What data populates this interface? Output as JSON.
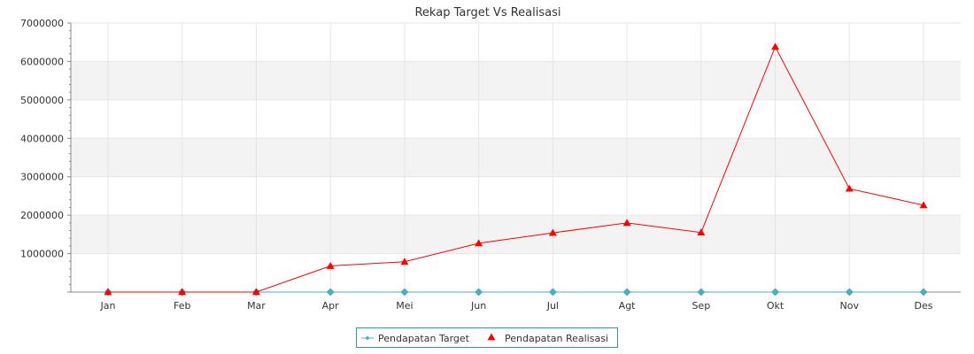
{
  "chart_data": {
    "type": "line",
    "title": "Rekap Target Vs Realisasi",
    "categories": [
      "Jan",
      "Feb",
      "Mar",
      "Apr",
      "Mei",
      "Jun",
      "Jul",
      "Agt",
      "Sep",
      "Okt",
      "Nov",
      "Des"
    ],
    "ylim": [
      0,
      7000000
    ],
    "yticks": [
      1000000,
      2000000,
      3000000,
      4000000,
      5000000,
      6000000,
      7000000
    ],
    "grid": true,
    "legend_position": "bottom-center",
    "series": [
      {
        "name": "Pendapatan Target",
        "color": "#4bacc6",
        "marker": "diamond",
        "values": [
          0,
          0,
          0,
          0,
          0,
          0,
          0,
          0,
          0,
          0,
          0,
          0
        ]
      },
      {
        "name": "Pendapatan Realisasi",
        "color": "#ff0000",
        "marker": "triangle",
        "values": [
          0,
          0,
          0,
          680000,
          790000,
          1270000,
          1540000,
          1800000,
          1550000,
          6380000,
          2690000,
          2260000
        ]
      }
    ]
  }
}
